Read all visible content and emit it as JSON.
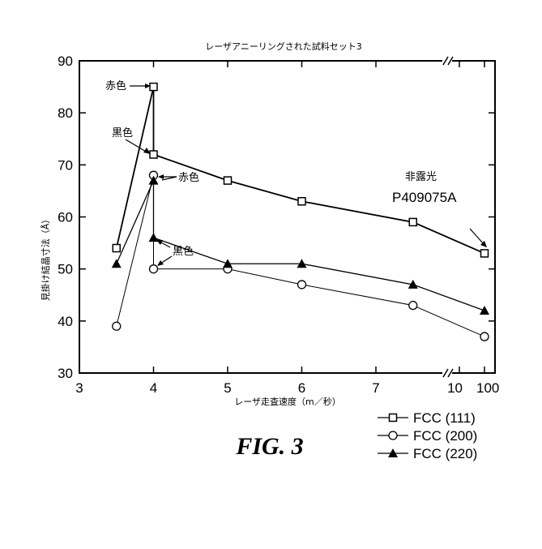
{
  "chart_data": {
    "type": "line",
    "title": "レーザアニーリングされた試料セット3",
    "xlabel": "レーザ走査速度（m／秒）",
    "ylabel": "見掛け結晶寸法（Å）",
    "ylim": [
      30,
      90
    ],
    "yticks": [
      "30",
      "40",
      "50",
      "60",
      "70",
      "80",
      "90"
    ],
    "xticks": [
      "3",
      "4",
      "5",
      "6",
      "7",
      "10",
      "100"
    ],
    "x_axis_note": "broken axis between 7 and 10",
    "grid": false,
    "legend_position": "bottom-right, below plot",
    "series": [
      {
        "name": "FCC (111)",
        "marker": "open-square",
        "points": [
          {
            "x": 3.5,
            "y": 54
          },
          {
            "x": 4,
            "y": 85
          },
          {
            "x": 4,
            "y": 72
          },
          {
            "x": 5,
            "y": 67
          },
          {
            "x": 6,
            "y": 63
          },
          {
            "x": 7.5,
            "y": 59
          },
          {
            "x": 100,
            "y": 53
          }
        ]
      },
      {
        "name": "FCC (200)",
        "marker": "open-circle",
        "points": [
          {
            "x": 3.5,
            "y": 39
          },
          {
            "x": 4,
            "y": 68
          },
          {
            "x": 4,
            "y": 50
          },
          {
            "x": 5,
            "y": 50
          },
          {
            "x": 6,
            "y": 47
          },
          {
            "x": 7.5,
            "y": 43
          },
          {
            "x": 100,
            "y": 37
          }
        ]
      },
      {
        "name": "FCC (220)",
        "marker": "filled-triangle",
        "points": [
          {
            "x": 3.5,
            "y": 51
          },
          {
            "x": 4,
            "y": 67
          },
          {
            "x": 4,
            "y": 56
          },
          {
            "x": 5,
            "y": 51
          },
          {
            "x": 6,
            "y": 51
          },
          {
            "x": 7.5,
            "y": 47
          },
          {
            "x": 100,
            "y": 42
          }
        ]
      }
    ],
    "annotations": {
      "red_top": "赤色",
      "black_mid": "黒色",
      "red_right": "赤色",
      "black_right": "黒色",
      "unexposed": "非露光",
      "sample_id": "P409075A"
    }
  },
  "figure_caption": "FIG. 3"
}
